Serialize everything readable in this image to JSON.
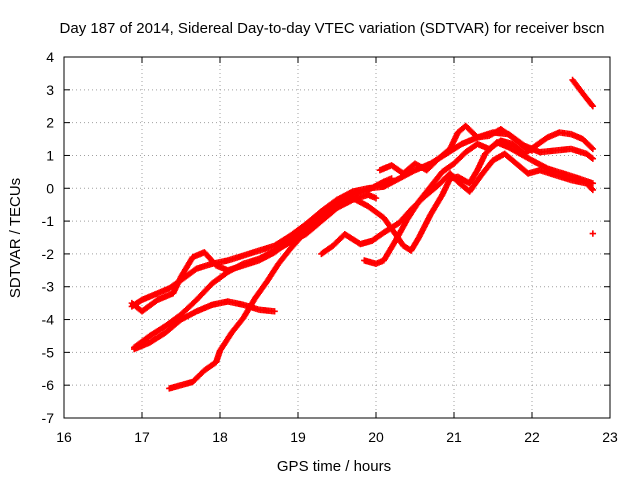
{
  "chart_data": {
    "type": "scatter",
    "title": "Day 187 of 2014, Sidereal Day-to-day VTEC variation (SDTVAR) for receiver bscn",
    "xlabel": "GPS time / hours",
    "ylabel": "SDTVAR / TECUs",
    "xlim": [
      16,
      23
    ],
    "ylim": [
      -7,
      4
    ],
    "xticks": [
      "16",
      "17",
      "18",
      "19",
      "20",
      "21",
      "22",
      "23"
    ],
    "yticks": [
      "-7",
      "-6",
      "-5",
      "-4",
      "-3",
      "-2",
      "-1",
      "0",
      "1",
      "2",
      "3",
      "4"
    ],
    "grid": true,
    "legend": "none",
    "marker": "plus",
    "color": "#ff0000",
    "series": [
      {
        "name": "track-1",
        "points": [
          [
            16.87,
            -3.6
          ],
          [
            17.0,
            -3.4
          ],
          [
            17.2,
            -3.2
          ],
          [
            17.35,
            -3.05
          ],
          [
            17.5,
            -2.8
          ],
          [
            17.7,
            -2.45
          ],
          [
            17.9,
            -2.3
          ],
          [
            18.1,
            -2.2
          ],
          [
            18.3,
            -2.05
          ],
          [
            18.5,
            -1.9
          ],
          [
            18.7,
            -1.75
          ],
          [
            18.9,
            -1.45
          ],
          [
            19.1,
            -1.1
          ],
          [
            19.3,
            -0.7
          ],
          [
            19.5,
            -0.35
          ],
          [
            19.7,
            -0.1
          ],
          [
            19.9,
            0.0
          ],
          [
            20.1,
            0.05
          ],
          [
            20.3,
            0.3
          ],
          [
            20.5,
            0.55
          ],
          [
            20.7,
            0.75
          ],
          [
            20.9,
            1.05
          ],
          [
            21.1,
            1.35
          ],
          [
            21.3,
            1.55
          ],
          [
            21.5,
            1.7
          ],
          [
            21.7,
            1.65
          ],
          [
            21.9,
            1.3
          ],
          [
            22.1,
            1.1
          ],
          [
            22.3,
            1.15
          ],
          [
            22.5,
            1.2
          ],
          [
            22.7,
            1.05
          ],
          [
            22.78,
            0.9
          ]
        ]
      },
      {
        "name": "track-2",
        "points": [
          [
            16.9,
            -4.9
          ],
          [
            17.1,
            -4.7
          ],
          [
            17.3,
            -4.4
          ],
          [
            17.5,
            -4.0
          ],
          [
            17.7,
            -3.75
          ],
          [
            17.9,
            -3.55
          ],
          [
            18.1,
            -3.45
          ],
          [
            18.3,
            -3.55
          ],
          [
            18.5,
            -3.7
          ],
          [
            18.7,
            -3.75
          ]
        ]
      },
      {
        "name": "track-3",
        "points": [
          [
            16.9,
            -4.85
          ],
          [
            17.1,
            -4.5
          ],
          [
            17.3,
            -4.2
          ],
          [
            17.5,
            -3.85
          ],
          [
            17.7,
            -3.4
          ],
          [
            17.9,
            -2.9
          ],
          [
            18.1,
            -2.55
          ],
          [
            18.3,
            -2.3
          ],
          [
            18.5,
            -2.15
          ],
          [
            18.7,
            -1.9
          ],
          [
            18.9,
            -1.65
          ],
          [
            19.1,
            -1.4
          ],
          [
            19.3,
            -1.0
          ],
          [
            19.5,
            -0.6
          ],
          [
            19.7,
            -0.35
          ],
          [
            19.9,
            -0.2
          ],
          [
            20.0,
            -0.3
          ]
        ]
      },
      {
        "name": "track-4",
        "points": [
          [
            16.87,
            -3.5
          ],
          [
            17.0,
            -3.75
          ],
          [
            17.2,
            -3.4
          ],
          [
            17.4,
            -3.2
          ],
          [
            17.5,
            -2.7
          ],
          [
            17.65,
            -2.1
          ],
          [
            17.8,
            -1.95
          ],
          [
            17.95,
            -2.35
          ],
          [
            18.1,
            -2.5
          ],
          [
            18.3,
            -2.35
          ],
          [
            18.5,
            -2.2
          ],
          [
            18.7,
            -1.95
          ],
          [
            18.9,
            -1.6
          ],
          [
            19.1,
            -1.25
          ],
          [
            19.3,
            -0.85
          ],
          [
            19.5,
            -0.45
          ],
          [
            19.7,
            -0.2
          ],
          [
            19.9,
            -0.05
          ],
          [
            20.1,
            0.2
          ],
          [
            20.2,
            0.3
          ]
        ]
      },
      {
        "name": "track-5",
        "points": [
          [
            17.35,
            -6.1
          ],
          [
            17.5,
            -6.0
          ],
          [
            17.65,
            -5.9
          ],
          [
            17.8,
            -5.55
          ],
          [
            17.95,
            -5.3
          ],
          [
            18.0,
            -4.95
          ],
          [
            18.15,
            -4.4
          ],
          [
            18.3,
            -3.95
          ],
          [
            18.45,
            -3.35
          ],
          [
            18.6,
            -2.85
          ],
          [
            18.75,
            -2.3
          ],
          [
            18.9,
            -1.85
          ],
          [
            19.05,
            -1.45
          ],
          [
            19.2,
            -1.05
          ],
          [
            19.35,
            -0.75
          ],
          [
            19.55,
            -0.45
          ],
          [
            19.7,
            -0.3
          ],
          [
            19.9,
            -0.55
          ],
          [
            20.1,
            -0.9
          ],
          [
            20.25,
            -1.4
          ],
          [
            20.35,
            -1.75
          ],
          [
            20.45,
            -1.9
          ],
          [
            20.55,
            -1.5
          ],
          [
            20.7,
            -0.8
          ],
          [
            20.85,
            -0.2
          ],
          [
            20.95,
            0.3
          ],
          [
            21.05,
            0.35
          ],
          [
            21.2,
            0.15
          ],
          [
            21.3,
            0.55
          ],
          [
            21.4,
            1.05
          ],
          [
            21.55,
            1.4
          ],
          [
            21.7,
            1.25
          ],
          [
            21.85,
            1.05
          ],
          [
            22.0,
            0.85
          ],
          [
            22.2,
            0.6
          ],
          [
            22.4,
            0.45
          ],
          [
            22.6,
            0.3
          ],
          [
            22.78,
            0.15
          ]
        ]
      },
      {
        "name": "track-6",
        "points": [
          [
            19.3,
            -2.0
          ],
          [
            19.45,
            -1.75
          ],
          [
            19.6,
            -1.4
          ],
          [
            19.7,
            -1.55
          ],
          [
            19.8,
            -1.7
          ],
          [
            19.95,
            -1.6
          ],
          [
            20.1,
            -1.35
          ],
          [
            20.3,
            -1.05
          ],
          [
            20.45,
            -0.65
          ],
          [
            20.6,
            -0.3
          ],
          [
            20.8,
            0.1
          ],
          [
            20.95,
            0.45
          ],
          [
            21.05,
            0.2
          ],
          [
            21.2,
            -0.1
          ],
          [
            21.35,
            0.4
          ],
          [
            21.5,
            0.85
          ],
          [
            21.65,
            1.05
          ],
          [
            21.8,
            0.75
          ],
          [
            21.95,
            0.45
          ],
          [
            22.1,
            0.55
          ],
          [
            22.3,
            0.4
          ],
          [
            22.5,
            0.25
          ],
          [
            22.7,
            0.15
          ],
          [
            22.78,
            -0.05
          ]
        ]
      },
      {
        "name": "track-7",
        "points": [
          [
            19.85,
            -2.2
          ],
          [
            20.0,
            -2.3
          ],
          [
            20.1,
            -2.2
          ],
          [
            20.25,
            -1.6
          ],
          [
            20.4,
            -0.95
          ],
          [
            20.55,
            -0.4
          ],
          [
            20.7,
            0.05
          ],
          [
            20.85,
            0.5
          ],
          [
            21.0,
            0.75
          ],
          [
            21.15,
            1.1
          ],
          [
            21.3,
            1.35
          ],
          [
            21.45,
            1.2
          ],
          [
            21.6,
            1.45
          ],
          [
            21.75,
            1.35
          ],
          [
            21.9,
            1.05
          ],
          [
            22.05,
            1.3
          ],
          [
            22.2,
            1.55
          ],
          [
            22.35,
            1.7
          ],
          [
            22.5,
            1.65
          ],
          [
            22.65,
            1.5
          ],
          [
            22.78,
            1.2
          ]
        ]
      },
      {
        "name": "track-8",
        "points": [
          [
            20.05,
            0.55
          ],
          [
            20.2,
            0.7
          ],
          [
            20.35,
            0.45
          ],
          [
            20.5,
            0.75
          ],
          [
            20.65,
            0.55
          ],
          [
            20.8,
            0.9
          ],
          [
            20.95,
            1.2
          ],
          [
            21.05,
            1.7
          ],
          [
            21.15,
            1.9
          ],
          [
            21.3,
            1.55
          ],
          [
            21.45,
            1.6
          ],
          [
            21.6,
            1.8
          ],
          [
            21.75,
            1.55
          ],
          [
            21.9,
            1.25
          ],
          [
            22.0,
            1.15
          ]
        ]
      },
      {
        "name": "track-9",
        "points": [
          [
            22.52,
            3.3
          ],
          [
            22.6,
            3.05
          ],
          [
            22.68,
            2.8
          ],
          [
            22.78,
            2.5
          ]
        ]
      },
      {
        "name": "track-10",
        "points": [
          [
            22.78,
            -1.38
          ]
        ]
      }
    ]
  }
}
